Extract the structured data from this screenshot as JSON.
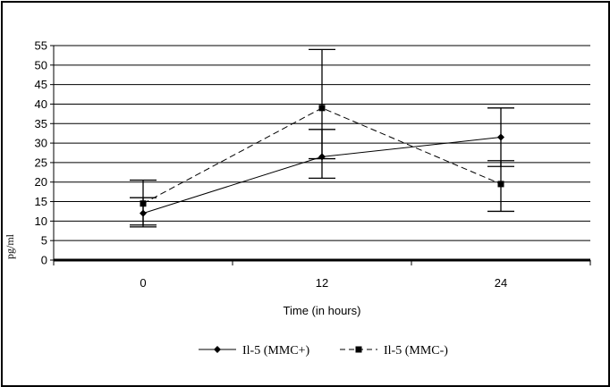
{
  "chart_data": {
    "type": "line",
    "categories": [
      "0",
      "12",
      "24"
    ],
    "xlabel": "Time (in hours)",
    "ylabel": "pg/ml",
    "ylim": [
      0,
      55
    ],
    "yticks": [
      0,
      5,
      10,
      15,
      20,
      25,
      30,
      35,
      40,
      45,
      50,
      55
    ],
    "grid": true,
    "legend_position": "bottom",
    "series": [
      {
        "name": "Il-5 (MMC+)",
        "marker": "diamond",
        "line_style": "solid",
        "values": [
          12,
          26.5,
          31.5
        ],
        "error_low": [
          8.5,
          21,
          24
        ],
        "error_high": [
          16,
          33.5,
          39
        ]
      },
      {
        "name": "Il-5 (MMC-)",
        "marker": "square",
        "line_style": "dashed",
        "values": [
          14.5,
          39,
          19.5
        ],
        "error_low": [
          9,
          26,
          12.5
        ],
        "error_high": [
          20.5,
          54,
          25.5
        ]
      }
    ]
  }
}
